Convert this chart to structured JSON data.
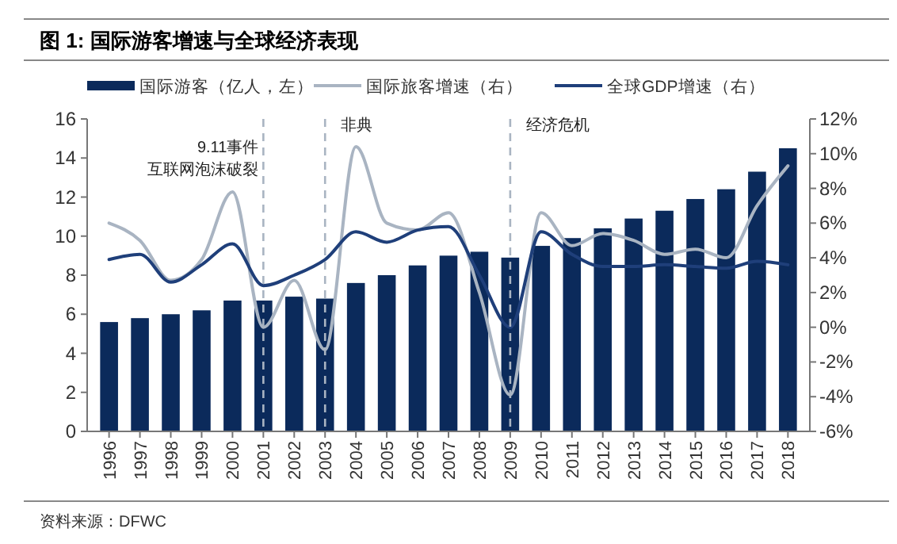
{
  "chart_data": {
    "type": "bar",
    "title": "图 1:  国际游客增速与全球经济表现",
    "categories": [
      "1996",
      "1997",
      "1998",
      "1999",
      "2000",
      "2001",
      "2002",
      "2003",
      "2004",
      "2005",
      "2006",
      "2007",
      "2008",
      "2009",
      "2010",
      "2011",
      "2012",
      "2013",
      "2014",
      "2015",
      "2016",
      "2017",
      "2018"
    ],
    "series": [
      {
        "name": "国际游客（亿人，左）",
        "color": "#0b2a5b",
        "values": [
          5.6,
          5.8,
          6.0,
          6.2,
          6.7,
          6.7,
          6.9,
          6.8,
          7.6,
          8.0,
          8.5,
          9.0,
          9.2,
          8.9,
          9.5,
          9.9,
          10.4,
          10.9,
          11.3,
          11.9,
          12.4,
          13.3,
          14.5
        ]
      },
      {
        "name": "国际旅客增速（右）",
        "type": "line",
        "axis": "y2",
        "color": "#a9b4c2",
        "values": [
          6.0,
          5.0,
          2.7,
          3.9,
          7.8,
          0.0,
          2.7,
          -1.3,
          10.4,
          6.0,
          5.6,
          6.6,
          2.0,
          -3.9,
          6.6,
          4.7,
          5.4,
          5.0,
          4.2,
          4.5,
          4.0,
          7.0,
          9.3
        ]
      },
      {
        "name": "全球GDP增速（右）",
        "type": "line",
        "axis": "y2",
        "color": "#1f3f7a",
        "values": [
          3.9,
          4.2,
          2.6,
          3.6,
          4.8,
          2.4,
          3.0,
          3.9,
          5.5,
          4.9,
          5.6,
          5.8,
          3.0,
          0.0,
          5.5,
          4.2,
          3.5,
          3.5,
          3.6,
          3.5,
          3.4,
          3.8,
          3.6
        ]
      }
    ],
    "ylim": [
      0,
      16
    ],
    "yticks": [
      0,
      2,
      4,
      6,
      8,
      10,
      12,
      14,
      16
    ],
    "y2lim": [
      -6,
      12
    ],
    "y2ticks": [
      {
        "value": -6,
        "label": "-6%"
      },
      {
        "value": -4,
        "label": "-4%"
      },
      {
        "value": -2,
        "label": "-2%"
      },
      {
        "value": 0,
        "label": "0%"
      },
      {
        "value": 2,
        "label": "2%"
      },
      {
        "value": 4,
        "label": "4%"
      },
      {
        "value": 6,
        "label": "6%"
      },
      {
        "value": 8,
        "label": "8%"
      },
      {
        "value": 10,
        "label": "10%"
      },
      {
        "value": 12,
        "label": "12%"
      }
    ],
    "ref_lines": [
      {
        "axis": "x",
        "value": "2001",
        "label": "9.11事件",
        "color": "#a9b4c2",
        "line_style": "dashed"
      },
      {
        "axis": "x",
        "value": "2003",
        "label": "非典",
        "color": "#a9b4c2",
        "line_style": "dashed"
      },
      {
        "axis": "x",
        "value": "2009",
        "label": "经济危机",
        "color": "#a9b4c2",
        "line_style": "dashed"
      }
    ],
    "legend": "top",
    "grid": false,
    "annotations": [
      {
        "text": "互联网泡沫破裂",
        "x": "2001"
      },
      "资料来源：DFWC"
    ]
  }
}
